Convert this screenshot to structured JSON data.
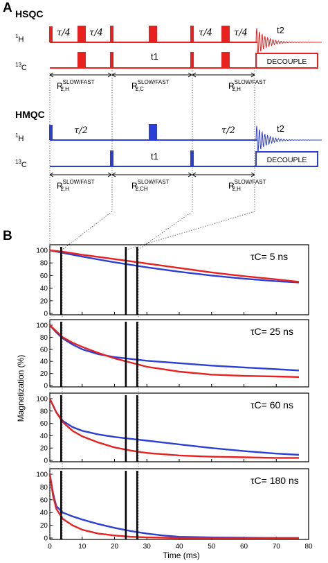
{
  "panel_a": {
    "letter": "A",
    "hsqc": {
      "label": "HSQC",
      "h_channel": "1H",
      "c_channel": "13C",
      "delay_labels": [
        "τ/4",
        "τ/4",
        "τ/4",
        "τ/4"
      ],
      "evolution_label": "t1",
      "acquisition_label": "t2",
      "decouple_label": "DECOUPLE",
      "periods": [
        {
          "base": "R",
          "sub": "2,H",
          "sup": "SLOW/FAST"
        },
        {
          "base": "R",
          "sub": "2,C",
          "sup": "SLOW/FAST"
        },
        {
          "base": "R",
          "sub": "2,H",
          "sup": "SLOW/FAST"
        }
      ],
      "color": "#e8201e"
    },
    "hmqc": {
      "label": "HMQC",
      "h_channel": "1H",
      "c_channel": "13C",
      "delay_labels": [
        "τ/2",
        "τ/2"
      ],
      "evolution_label": "t1",
      "acquisition_label": "t2",
      "decouple_label": "DECOUPLE",
      "periods": [
        {
          "base": "R",
          "sub": "2,H",
          "sup": "SLOW/FAST"
        },
        {
          "base": "R",
          "sub": "2,CH",
          "sup": "SLOW/FAST"
        },
        {
          "base": "R",
          "sub": "2,H",
          "sup": "SLOW/FAST"
        }
      ],
      "color": "#2b3fd6"
    }
  },
  "panel_b": {
    "letter": "B",
    "xlabel": "Time (ms)",
    "ylabel": "Magnetization (%)"
  },
  "chart_data": [
    {
      "type": "line",
      "annotation": "τC= 5 ns",
      "xlim": [
        0,
        80
      ],
      "ylim": [
        0,
        100
      ],
      "x_ticks": [],
      "y_ticks": [
        0,
        20,
        40,
        60,
        80,
        100
      ],
      "event_times_ms": [
        3.5,
        23.5,
        27
      ],
      "series": [
        {
          "color": "#2b3fd6",
          "x": [
            0,
            5,
            10,
            20,
            30,
            40,
            50,
            60,
            70,
            77
          ],
          "y": [
            100,
            95,
            90,
            81,
            73,
            66,
            60,
            55,
            51,
            49
          ]
        },
        {
          "color": "#e8201e",
          "x": [
            0,
            5,
            10,
            20,
            30,
            40,
            50,
            60,
            70,
            77
          ],
          "y": [
            100,
            97,
            93,
            86,
            79,
            72,
            65,
            59,
            54,
            50
          ]
        }
      ]
    },
    {
      "type": "line",
      "annotation": "τC= 25 ns",
      "xlim": [
        0,
        80
      ],
      "ylim": [
        0,
        100
      ],
      "x_ticks": [],
      "y_ticks": [
        0,
        20,
        40,
        60,
        80,
        100
      ],
      "event_times_ms": [
        3.5,
        23.5,
        27
      ],
      "series": [
        {
          "color": "#2b3fd6",
          "x": [
            0,
            2,
            4,
            7,
            10,
            15,
            20,
            25,
            30,
            40,
            50,
            60,
            70,
            77
          ],
          "y": [
            100,
            88,
            78,
            68,
            60,
            52,
            47,
            44,
            41,
            37,
            33,
            30,
            27,
            25
          ]
        },
        {
          "color": "#e8201e",
          "x": [
            0,
            2,
            4,
            7,
            10,
            15,
            20,
            25,
            30,
            40,
            50,
            60,
            70,
            77
          ],
          "y": [
            100,
            90,
            80,
            71,
            64,
            54,
            45,
            38,
            31,
            23,
            18,
            16,
            15,
            14
          ]
        }
      ]
    },
    {
      "type": "line",
      "annotation": "τC= 60 ns",
      "xlim": [
        0,
        80
      ],
      "ylim": [
        0,
        100
      ],
      "x_ticks": [],
      "y_ticks": [
        0,
        20,
        40,
        60,
        80,
        100
      ],
      "event_times_ms": [
        3.5,
        23.5,
        27
      ],
      "series": [
        {
          "color": "#2b3fd6",
          "x": [
            0,
            2,
            4,
            7,
            10,
            15,
            20,
            25,
            30,
            40,
            50,
            60,
            70,
            77
          ],
          "y": [
            100,
            78,
            64,
            54,
            48,
            42,
            38,
            35,
            32,
            26,
            20,
            15,
            11,
            9
          ]
        },
        {
          "color": "#e8201e",
          "x": [
            0,
            2,
            4,
            7,
            10,
            15,
            20,
            25,
            30,
            40,
            50,
            60,
            70,
            77
          ],
          "y": [
            100,
            78,
            62,
            48,
            39,
            29,
            21,
            16,
            12,
            8,
            6,
            5,
            4,
            4
          ]
        }
      ]
    },
    {
      "type": "line",
      "annotation": "τC= 180 ns",
      "xlabel": "Time (ms)",
      "xlim": [
        0,
        80
      ],
      "ylim": [
        0,
        100
      ],
      "x_ticks": [
        0,
        10,
        20,
        30,
        40,
        50,
        60,
        70,
        80
      ],
      "y_ticks": [
        0,
        20,
        40,
        60,
        80,
        100
      ],
      "event_times_ms": [
        3.5,
        23.5,
        27
      ],
      "series": [
        {
          "color": "#2b3fd6",
          "x": [
            0,
            1,
            2,
            4,
            7,
            10,
            15,
            20,
            25,
            30,
            35,
            40,
            50,
            60,
            70,
            77
          ],
          "y": [
            100,
            70,
            50,
            40,
            34,
            29,
            22,
            16,
            11,
            7,
            4,
            2,
            1,
            0.5,
            0,
            0
          ]
        },
        {
          "color": "#e8201e",
          "x": [
            0,
            1,
            2,
            4,
            7,
            10,
            15,
            20,
            25,
            30,
            35,
            40,
            50,
            60,
            70,
            77
          ],
          "y": [
            100,
            66,
            46,
            30,
            20,
            13,
            7,
            4,
            2,
            1,
            0.5,
            0,
            0,
            0,
            0,
            0
          ]
        }
      ]
    }
  ]
}
